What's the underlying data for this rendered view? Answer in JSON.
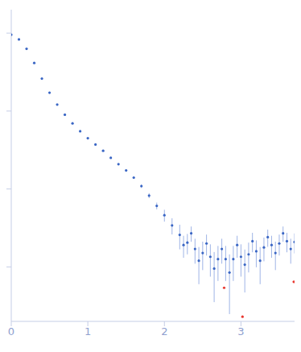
{
  "chart_data": {
    "type": "scatter",
    "log": "y",
    "grid": false,
    "tick_labels": "x",
    "xlim": [
      0,
      3.7
    ],
    "xticks": [
      0,
      1,
      2,
      3
    ],
    "ylim": [
      0.0002,
      2
    ],
    "yticks": [
      0.001,
      0.01,
      0.1,
      1
    ],
    "series": [
      {
        "color": "#3a66c4",
        "marker": "circle",
        "x": [
          0,
          0.1,
          0.2,
          0.3,
          0.4,
          0.5,
          0.6,
          0.7,
          0.8,
          0.9,
          1.0,
          1.1,
          1.2,
          1.3,
          1.4,
          1.5,
          1.6,
          1.7,
          1.8,
          1.9,
          2.0,
          2.1,
          2.2,
          2.25,
          2.3,
          2.35,
          2.4,
          2.45,
          2.5,
          2.55,
          2.6,
          2.65,
          2.7,
          2.75,
          2.8,
          2.85,
          2.9,
          2.95,
          3.0,
          3.05,
          3.1,
          3.15,
          3.2,
          3.25,
          3.3,
          3.35,
          3.4,
          3.45,
          3.5,
          3.55,
          3.6,
          3.65,
          3.7
        ],
        "values": [
          0.955,
          0.831,
          0.629,
          0.414,
          0.261,
          0.172,
          0.121,
          0.0897,
          0.0695,
          0.0551,
          0.0448,
          0.0372,
          0.0309,
          0.0251,
          0.0208,
          0.0173,
          0.014,
          0.0109,
          0.00823,
          0.00608,
          0.00461,
          0.00341,
          0.00258,
          0.00191,
          0.00205,
          0.0027,
          0.0017,
          0.0012,
          0.00151,
          0.002,
          0.00135,
          0.000953,
          0.00126,
          0.0017,
          0.00126,
          0.000848,
          0.00126,
          0.00191,
          0.00135,
          0.00107,
          0.00145,
          0.00214,
          0.00159,
          0.0012,
          0.00178,
          0.00241,
          0.00191,
          0.00151,
          0.002,
          0.0027,
          0.00214,
          0.0017,
          0.00209
        ],
        "errors": [
          0.002,
          0.002,
          0.002,
          0.001,
          0.001,
          0.001,
          0.0005,
          0.0004,
          0.0003,
          0.0003,
          0.0005,
          0.0005,
          0.0005,
          0.0005,
          0.0005,
          0.0005,
          0.0005,
          0.0006,
          0.0006,
          0.0006,
          0.0008,
          0.0008,
          0.0009,
          0.0006,
          0.0006,
          0.0006,
          0.0006,
          0.0006,
          0.0006,
          0.0006,
          0.0006,
          0.0006,
          0.0006,
          0.0006,
          0.0006,
          0.0006,
          0.0006,
          0.0006,
          0.0006,
          0.0006,
          0.0006,
          0.0006,
          0.0006,
          0.0006,
          0.0006,
          0.0006,
          0.0006,
          0.0006,
          0.0006,
          0.0006,
          0.0006,
          0.0006,
          0.0006
        ]
      },
      {
        "color": "#e8372f",
        "marker": "circle",
        "x": [
          2.78,
          3.02,
          3.69
        ],
        "values": [
          0.00054,
          0.00023,
          0.000645
        ]
      }
    ]
  }
}
